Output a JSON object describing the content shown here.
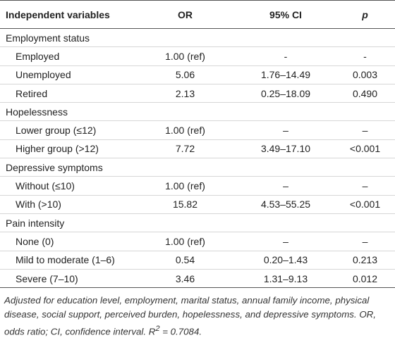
{
  "table": {
    "header": [
      "Independent variables",
      "OR",
      "95% CI",
      "p"
    ],
    "rows": [
      [
        "Employment status"
      ],
      [
        "Employed",
        "1.00 (ref)",
        "-",
        "-"
      ],
      [
        "Unemployed",
        "5.06",
        "1.76–14.49",
        "0.003"
      ],
      [
        "Retired",
        "2.13",
        "0.25–18.09",
        "0.490"
      ],
      [
        "Hopelessness"
      ],
      [
        "Lower group (≤12)",
        "1.00 (ref)",
        "–",
        "–"
      ],
      [
        "Higher group (>12)",
        "7.72",
        "3.49–17.10",
        "<0.001"
      ],
      [
        "Depressive symptoms"
      ],
      [
        "Without (≤10)",
        "1.00 (ref)",
        "–",
        "–"
      ],
      [
        "With (>10)",
        "15.82",
        "4.53–55.25",
        "<0.001"
      ],
      [
        "Pain intensity"
      ],
      [
        "None (0)",
        "1.00 (ref)",
        "–",
        "–"
      ],
      [
        "Mild to moderate (1–6)",
        "0.54",
        "0.20–1.43",
        "0.213"
      ],
      [
        "Severe (7–10)",
        "3.46",
        "1.31–9.13",
        "0.012"
      ]
    ]
  },
  "footnote": [
    "Adjusted for education level, employment, marital status, annual family income, physical disease, social support, perceived burden, hopelessness, and depressive symptoms. OR, odds ratio; CI, confidence interval. ",
    "R",
    "2",
    " = 0.7084."
  ]
}
